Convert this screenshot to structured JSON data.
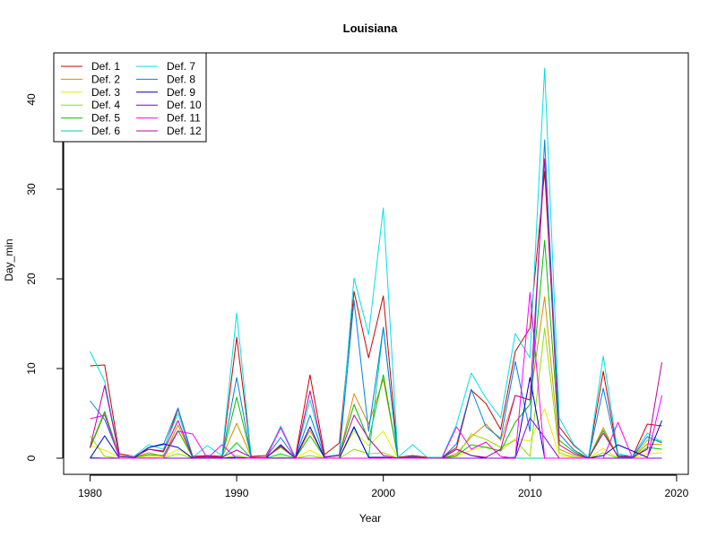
{
  "chart_data": {
    "type": "line",
    "title": "Louisiana",
    "xlabel": "Year",
    "ylabel": "Day_min",
    "xlim": [
      1978.2,
      2020.8
    ],
    "ylim": [
      -1.8,
      45.2
    ],
    "xticks": [
      1980,
      1990,
      2000,
      2010,
      2020
    ],
    "yticks": [
      0,
      10,
      20,
      30,
      40
    ],
    "grid": false,
    "legend_position": "top-left",
    "legend_columns": 2,
    "x": [
      1980,
      1981,
      1982,
      1983,
      1984,
      1985,
      1986,
      1987,
      1988,
      1989,
      1990,
      1991,
      1992,
      1993,
      1994,
      1995,
      1996,
      1997,
      1998,
      1999,
      2000,
      2001,
      2002,
      2003,
      2004,
      2005,
      2006,
      2007,
      2008,
      2009,
      2010,
      2011,
      2012,
      2013,
      2014,
      2015,
      2016,
      2017,
      2018,
      2019
    ],
    "series": [
      {
        "name": "Def. 1",
        "color": "#d00000",
        "values": [
          10.3,
          10.4,
          0.5,
          0.2,
          1.0,
          0.8,
          5.5,
          0.2,
          0.3,
          0.2,
          13.5,
          0.2,
          0.3,
          3.4,
          0.1,
          9.3,
          0.4,
          1.7,
          18.6,
          11.2,
          18.1,
          0.1,
          0.3,
          0.1,
          0.1,
          1.2,
          7.6,
          6.1,
          3.2,
          11.9,
          14.5,
          32.0,
          3.5,
          1.4,
          0.1,
          9.7,
          0.3,
          0.2,
          3.8,
          3.6
        ]
      },
      {
        "name": "Def. 2",
        "color": "#e08a00",
        "values": [
          1.1,
          5.0,
          0.2,
          0.1,
          0.6,
          0.2,
          3.7,
          0.1,
          0.1,
          0.1,
          3.9,
          0.1,
          0.1,
          1.2,
          0.0,
          3.1,
          0.1,
          0.3,
          7.2,
          3.8,
          8.8,
          0.0,
          0.1,
          0.0,
          0.0,
          0.5,
          2.4,
          3.8,
          2.0,
          7.0,
          6.5,
          18.0,
          1.0,
          0.3,
          0.0,
          3.4,
          0.1,
          0.0,
          1.6,
          1.5
        ]
      },
      {
        "name": "Def. 3",
        "color": "#eaea00",
        "values": [
          1.4,
          0.9,
          0.1,
          0.0,
          0.3,
          0.1,
          1.0,
          0.0,
          0.0,
          0.0,
          1.8,
          0.0,
          0.0,
          0.4,
          0.0,
          0.9,
          0.0,
          0.1,
          3.0,
          1.4,
          3.0,
          0.0,
          0.0,
          0.0,
          0.0,
          0.2,
          0.9,
          1.3,
          0.8,
          2.2,
          1.9,
          5.5,
          0.3,
          0.1,
          0.0,
          1.1,
          0.0,
          0.0,
          0.5,
          0.6
        ]
      },
      {
        "name": "Def. 4",
        "color": "#8ce000",
        "values": [
          2.5,
          0.2,
          0.0,
          0.0,
          0.1,
          0.0,
          0.5,
          0.0,
          0.0,
          0.0,
          0.3,
          0.0,
          0.0,
          0.1,
          0.0,
          0.3,
          0.0,
          0.0,
          1.0,
          0.5,
          0.6,
          0.0,
          0.0,
          0.0,
          0.0,
          0.2,
          2.7,
          2.1,
          1.2,
          2.0,
          0.2,
          14.5,
          0.6,
          0.1,
          0.0,
          0.6,
          0.0,
          0.0,
          2.0,
          2.0
        ]
      },
      {
        "name": "Def. 5",
        "color": "#00c000",
        "values": [
          1.2,
          5.2,
          0.2,
          0.1,
          0.4,
          0.3,
          3.1,
          0.1,
          0.1,
          0.1,
          6.8,
          0.1,
          0.1,
          1.3,
          0.0,
          2.5,
          0.1,
          0.4,
          6.0,
          2.0,
          9.3,
          0.0,
          0.1,
          0.0,
          0.0,
          0.3,
          1.5,
          1.2,
          0.8,
          4.0,
          6.0,
          24.3,
          2.0,
          0.7,
          0.0,
          3.1,
          0.1,
          0.0,
          1.2,
          1.0
        ]
      },
      {
        "name": "Def. 6",
        "color": "#00d0a0",
        "values": [
          0.1,
          0.0,
          0.0,
          0.0,
          0.0,
          0.0,
          0.0,
          0.0,
          0.0,
          0.0,
          1.7,
          0.0,
          0.0,
          0.5,
          0.0,
          0.0,
          0.0,
          0.0,
          3.4,
          0.1,
          14.6,
          0.0,
          0.0,
          0.0,
          0.0,
          0.0,
          0.0,
          0.0,
          0.0,
          0.0,
          0.0,
          0.0,
          0.0,
          0.0,
          0.0,
          0.0,
          0.0,
          0.0,
          0.0,
          0.0
        ]
      },
      {
        "name": "Def. 7",
        "color": "#00e0e8",
        "values": [
          11.9,
          8.6,
          0.3,
          0.2,
          1.5,
          1.0,
          5.0,
          0.1,
          1.4,
          0.3,
          16.2,
          0.1,
          0.1,
          3.6,
          0.1,
          6.5,
          0.2,
          0.4,
          20.1,
          13.8,
          27.9,
          0.1,
          1.5,
          0.1,
          0.1,
          3.8,
          9.5,
          6.7,
          4.5,
          13.9,
          11.2,
          43.5,
          4.5,
          1.5,
          0.1,
          11.4,
          0.5,
          0.2,
          2.8,
          1.8
        ]
      },
      {
        "name": "Def. 8",
        "color": "#0080e0",
        "values": [
          6.4,
          4.3,
          0.2,
          0.1,
          1.2,
          1.5,
          5.6,
          0.1,
          0.2,
          0.1,
          9.0,
          0.1,
          0.1,
          2.3,
          0.0,
          4.8,
          0.1,
          0.3,
          17.6,
          3.0,
          14.6,
          0.0,
          0.2,
          0.0,
          0.0,
          1.6,
          7.7,
          3.5,
          2.2,
          10.8,
          3.0,
          35.5,
          2.7,
          0.9,
          0.0,
          7.8,
          0.3,
          0.1,
          2.4,
          1.7
        ]
      },
      {
        "name": "Def. 9",
        "color": "#0000c0",
        "values": [
          0.0,
          2.5,
          0.0,
          0.0,
          1.2,
          1.6,
          1.2,
          0.0,
          0.0,
          0.0,
          0.1,
          0.0,
          0.0,
          1.5,
          0.0,
          3.5,
          0.0,
          0.0,
          3.5,
          0.1,
          0.1,
          0.0,
          0.0,
          0.0,
          0.0,
          1.0,
          0.3,
          0.0,
          0.0,
          0.1,
          9.0,
          0.0,
          0.0,
          0.0,
          0.0,
          0.3,
          1.5,
          0.8,
          0.1,
          4.2
        ]
      },
      {
        "name": "Def. 10",
        "color": "#8000e0",
        "values": [
          0.0,
          0.0,
          0.0,
          0.0,
          0.0,
          0.0,
          0.0,
          0.0,
          0.0,
          0.0,
          0.0,
          0.0,
          0.0,
          0.0,
          0.0,
          0.0,
          0.0,
          0.0,
          0.0,
          0.0,
          0.0,
          0.0,
          0.0,
          0.0,
          0.0,
          0.0,
          0.0,
          0.0,
          0.0,
          0.0,
          4.5,
          2.3,
          0.0,
          0.0,
          0.0,
          0.0,
          0.0,
          0.0,
          0.0,
          0.0
        ]
      },
      {
        "name": "Def. 11",
        "color": "#ff00ff",
        "values": [
          4.4,
          4.8,
          0.0,
          0.0,
          0.0,
          0.0,
          3.0,
          2.7,
          0.0,
          1.5,
          0.0,
          0.0,
          0.0,
          3.4,
          0.0,
          0.0,
          0.0,
          0.0,
          0.0,
          0.0,
          0.0,
          0.0,
          0.0,
          0.0,
          0.0,
          3.5,
          1.0,
          1.8,
          0.2,
          0.0,
          18.5,
          0.0,
          0.0,
          0.0,
          0.0,
          0.0,
          4.0,
          0.0,
          0.0,
          7.0
        ]
      },
      {
        "name": "Def. 12",
        "color": "#c000a0",
        "values": [
          1.2,
          8.1,
          0.2,
          0.1,
          1.0,
          0.7,
          4.2,
          0.1,
          0.2,
          0.1,
          0.9,
          0.1,
          0.1,
          1.4,
          0.0,
          7.5,
          0.1,
          0.3,
          4.8,
          2.2,
          0.3,
          0.0,
          0.1,
          0.0,
          0.0,
          1.0,
          0.3,
          0.1,
          1.0,
          7.0,
          6.5,
          33.4,
          1.5,
          0.5,
          0.0,
          2.8,
          0.2,
          0.1,
          1.0,
          10.7
        ]
      }
    ]
  }
}
